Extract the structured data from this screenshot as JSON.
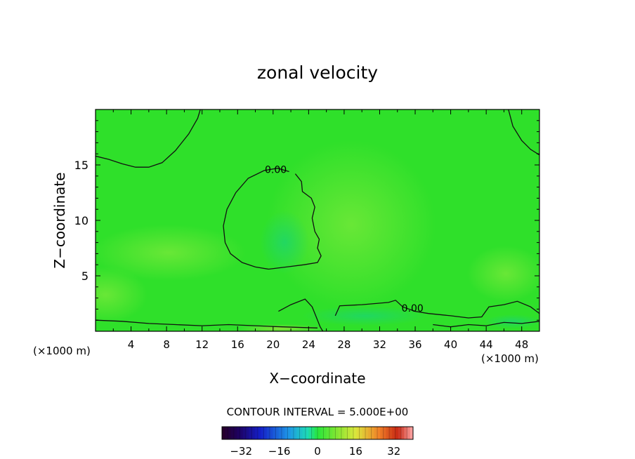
{
  "chart_data": {
    "type": "heatmap",
    "title": "zonal velocity",
    "xlabel": "X−coordinate",
    "ylabel": "Z−coordinate",
    "x_unit_left": "(×1000 m)",
    "x_unit_right": "(×1000 m)",
    "xlim": [
      0,
      50
    ],
    "ylim": [
      0,
      20
    ],
    "xticks": [
      "4",
      "8",
      "12",
      "16",
      "20",
      "24",
      "28",
      "32",
      "36",
      "40",
      "44",
      "48"
    ],
    "xtick_values": [
      4,
      8,
      12,
      16,
      20,
      24,
      28,
      32,
      36,
      40,
      44,
      48
    ],
    "yticks": [
      "5",
      "10",
      "15"
    ],
    "ytick_values": [
      5,
      10,
      15
    ],
    "contour_interval_label": "CONTOUR INTERVAL = 5.000E+00",
    "contour_labels": [
      {
        "text": "0.00",
        "x": 20.3,
        "y": 14.6
      },
      {
        "text": "0.00",
        "x": 35.7,
        "y": 2.1
      }
    ],
    "colorbar": {
      "min": -40,
      "max": 40,
      "ticks": [
        "−32",
        "−16",
        "0",
        "16",
        "32"
      ],
      "tick_values": [
        -32,
        -16,
        0,
        16,
        32
      ]
    },
    "field_summary": "near-uniform ~0 (green) zonal velocity field with weak variations",
    "contours": [
      {
        "level": 0,
        "points": [
          [
            0,
            15.8
          ],
          [
            1.5,
            15.5
          ],
          [
            3,
            15.1
          ],
          [
            4.5,
            14.8
          ],
          [
            6,
            14.8
          ],
          [
            7.5,
            15.2
          ],
          [
            9,
            16.3
          ],
          [
            10.5,
            17.8
          ],
          [
            11.5,
            19.2
          ],
          [
            11.8,
            20
          ]
        ]
      },
      {
        "level": 0,
        "points": [
          [
            46.5,
            20
          ],
          [
            47,
            18.5
          ],
          [
            48,
            17.2
          ],
          [
            49,
            16.4
          ],
          [
            50,
            15.9
          ]
        ]
      },
      {
        "level": 0,
        "points": [
          [
            21.8,
            14.4
          ],
          [
            20.5,
            14.7
          ],
          [
            19,
            14.5
          ],
          [
            17.2,
            13.8
          ],
          [
            15.8,
            12.5
          ],
          [
            14.8,
            11
          ],
          [
            14.4,
            9.5
          ],
          [
            14.6,
            8
          ],
          [
            15.2,
            7
          ],
          [
            16.5,
            6.2
          ],
          [
            18,
            5.8
          ],
          [
            19.5,
            5.6
          ],
          [
            21.5,
            5.8
          ],
          [
            23.5,
            6
          ],
          [
            25,
            6.2
          ],
          [
            25.4,
            6.8
          ],
          [
            25,
            7.5
          ],
          [
            25.2,
            8.3
          ],
          [
            24.7,
            9
          ],
          [
            24.4,
            10.2
          ],
          [
            24.7,
            11.2
          ],
          [
            24.3,
            12
          ],
          [
            23.3,
            12.6
          ],
          [
            23.2,
            13.5
          ],
          [
            22.5,
            14.2
          ]
        ]
      },
      {
        "level": 0,
        "points": [
          [
            20.6,
            1.8
          ],
          [
            22,
            2.4
          ],
          [
            23.6,
            2.9
          ],
          [
            24.4,
            2.2
          ],
          [
            24.8,
            1.4
          ],
          [
            25.3,
            0.4
          ],
          [
            25.6,
            0
          ]
        ]
      },
      {
        "level": 0,
        "points": [
          [
            27,
            1.4
          ],
          [
            27.5,
            2.3
          ],
          [
            30,
            2.4
          ],
          [
            33,
            2.6
          ],
          [
            33.8,
            2.8
          ],
          [
            34.6,
            2.2
          ],
          [
            36,
            1.8
          ],
          [
            37.5,
            1.6
          ],
          [
            40,
            1.4
          ],
          [
            42,
            1.2
          ],
          [
            43.5,
            1.3
          ],
          [
            44.3,
            2.2
          ],
          [
            46,
            2.4
          ],
          [
            47.5,
            2.7
          ],
          [
            49,
            2.2
          ],
          [
            50,
            1.6
          ]
        ]
      },
      {
        "level": 0,
        "points": [
          [
            38,
            0.6
          ],
          [
            40,
            0.4
          ],
          [
            42,
            0.6
          ],
          [
            44,
            0.5
          ],
          [
            46,
            0.8
          ],
          [
            48,
            0.7
          ],
          [
            50,
            0.9
          ]
        ]
      },
      {
        "level": 0,
        "points": [
          [
            0,
            1
          ],
          [
            3,
            0.9
          ],
          [
            6,
            0.7
          ],
          [
            9,
            0.6
          ],
          [
            12,
            0.5
          ],
          [
            15,
            0.6
          ],
          [
            18,
            0.5
          ],
          [
            21,
            0.4
          ],
          [
            25,
            0.3
          ]
        ]
      }
    ]
  }
}
